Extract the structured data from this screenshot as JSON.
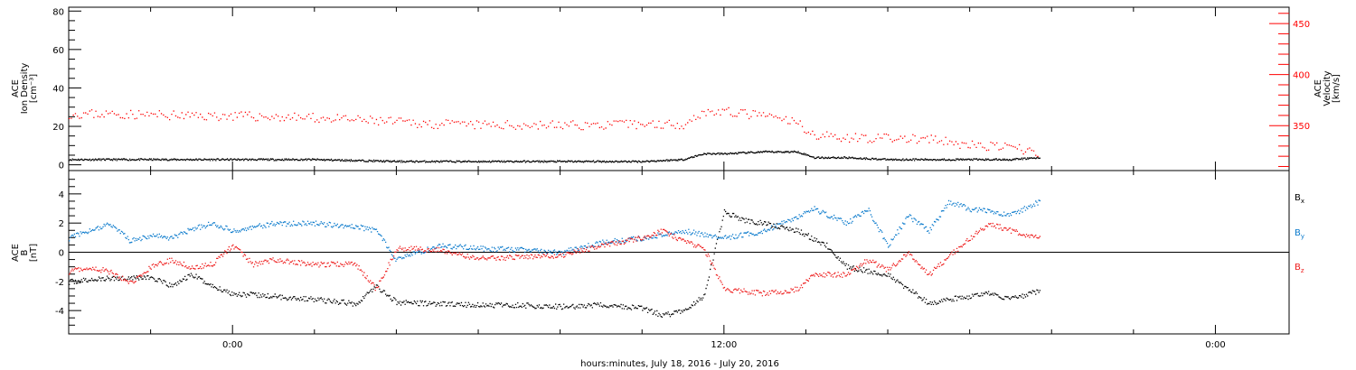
{
  "x_axis": {
    "label": "hours:minutes, July 18, 2016 - July 20, 2016",
    "ticks": [
      {
        "hour": 0,
        "label": "0:00"
      },
      {
        "hour": 12,
        "label": "12:00"
      },
      {
        "hour": 24,
        "label": "0:00"
      }
    ],
    "range_hours": [
      -4.0,
      25.8
    ],
    "minor_step_hours": 2
  },
  "chart_data": [
    {
      "type": "scatter",
      "panel": "top",
      "left_axis": {
        "label_lines": [
          "ACE",
          "Ion Density",
          "[cm⁻³]"
        ],
        "ylim": [
          -3,
          82
        ],
        "ticks": [
          0,
          20,
          40,
          60,
          80
        ],
        "color": "#000000"
      },
      "right_axis": {
        "label_lines": [
          "ACE",
          "Velocity",
          "[km/s]"
        ],
        "ylim": [
          306,
          466
        ],
        "ticks": [
          350,
          400,
          450
        ],
        "color": "#ff0000"
      },
      "series": [
        {
          "axis": "left",
          "color": "#000000",
          "x": [
            -4.0,
            -3,
            -2,
            -1,
            0,
            1,
            2,
            3,
            4,
            5,
            6,
            7,
            8,
            9,
            10,
            11,
            11.5,
            12,
            13,
            13.8,
            14.2,
            15,
            16,
            17,
            18,
            19,
            19.7
          ],
          "y": [
            3,
            3,
            3,
            3,
            3,
            3,
            3,
            2.5,
            2,
            2,
            2,
            2,
            2,
            2,
            2,
            3,
            6,
            6,
            7,
            7,
            4,
            4,
            3,
            3,
            3,
            3,
            4
          ]
        },
        {
          "axis": "right",
          "color": "#ff0000",
          "x": [
            -4.0,
            -3,
            -2,
            -1,
            0,
            1,
            2,
            3,
            4,
            5,
            6,
            7,
            8,
            9,
            10,
            11,
            11.5,
            12,
            13,
            13.8,
            14.2,
            15,
            16,
            17,
            18,
            19,
            19.7
          ],
          "y": [
            362,
            362,
            361,
            360,
            360,
            359,
            358,
            356,
            354,
            352,
            351,
            351,
            351,
            351,
            352,
            352,
            364,
            364,
            360,
            353,
            341,
            339,
            338,
            337,
            331,
            329,
            324
          ]
        }
      ]
    },
    {
      "type": "scatter",
      "panel": "bottom",
      "left_axis": {
        "label_lines": [
          "ACE",
          "B",
          "[nT]"
        ],
        "ylim": [
          -5.6,
          5.6
        ],
        "ticks": [
          -4,
          -2,
          0,
          2,
          4
        ]
      },
      "zero_line": 0,
      "series": [
        {
          "name": "Bx",
          "label_main": "B",
          "label_sub": "x",
          "color": "#000000",
          "x": [
            -4.0,
            -3.2,
            -2.5,
            -2,
            -1.5,
            -1,
            -0.5,
            0,
            1,
            2,
            3,
            3.5,
            4,
            5,
            6,
            7,
            8,
            9,
            10,
            10.5,
            11,
            11.5,
            12,
            12.5,
            13,
            13.8,
            14.5,
            15,
            16,
            16.5,
            17,
            17.5,
            18,
            18.5,
            19,
            19.7
          ],
          "y": [
            -2,
            -1.8,
            -1.7,
            -1.7,
            -2.3,
            -1.5,
            -2.3,
            -2.8,
            -3,
            -3.2,
            -3.5,
            -2.3,
            -3.4,
            -3.5,
            -3.6,
            -3.6,
            -3.7,
            -3.6,
            -3.8,
            -4.3,
            -4,
            -3,
            2.8,
            2.2,
            2,
            1.5,
            0.5,
            -1,
            -1.5,
            -2.5,
            -3.5,
            -3.2,
            -3,
            -2.8,
            -3.2,
            -2.6
          ]
        },
        {
          "name": "By",
          "label_main": "B",
          "label_sub": "y",
          "color": "#0a7acc",
          "x": [
            -4.0,
            -3.5,
            -3,
            -2.5,
            -2,
            -1.5,
            -1,
            -0.5,
            0,
            1,
            2,
            3,
            3.5,
            4,
            5,
            6,
            7,
            8,
            9,
            10,
            11,
            12,
            13,
            13.8,
            14.2,
            15,
            15.5,
            16,
            16.5,
            17,
            17.5,
            18,
            18.5,
            19,
            19.7
          ],
          "y": [
            1,
            1.5,
            2,
            0.8,
            1.2,
            1,
            1.6,
            2,
            1.5,
            2,
            2,
            1.8,
            1.5,
            -0.5,
            0.5,
            0.3,
            0.2,
            0,
            0.7,
            1,
            1.5,
            1,
            1.5,
            2.5,
            3,
            2,
            3,
            0.5,
            2.5,
            1.5,
            3.5,
            3,
            2.8,
            2.6,
            3.5
          ]
        },
        {
          "name": "Bz",
          "label_main": "B",
          "label_sub": "z",
          "color": "#ee1c1c",
          "x": [
            -4.0,
            -3.5,
            -3,
            -2.5,
            -2,
            -1.5,
            -1,
            -0.5,
            0,
            0.5,
            1,
            2,
            3,
            3.5,
            4,
            5,
            6,
            7,
            8,
            9,
            10,
            10.5,
            11,
            11.5,
            12,
            13,
            13.8,
            14.2,
            15,
            15.5,
            16,
            16.5,
            17,
            17.5,
            18,
            18.5,
            19,
            19.7
          ],
          "y": [
            -1.3,
            -1,
            -1.3,
            -2.1,
            -1,
            -0.5,
            -1,
            -0.8,
            0.5,
            -0.8,
            -0.5,
            -0.8,
            -0.8,
            -2.5,
            0.3,
            0.2,
            -0.4,
            -0.3,
            -0.2,
            0.5,
            1,
            1.5,
            0.8,
            0.3,
            -2.5,
            -2.8,
            -2.5,
            -1.5,
            -1.5,
            -0.5,
            -1.2,
            0,
            -1.5,
            -0.2,
            1,
            2,
            1.5,
            1
          ]
        }
      ]
    }
  ]
}
